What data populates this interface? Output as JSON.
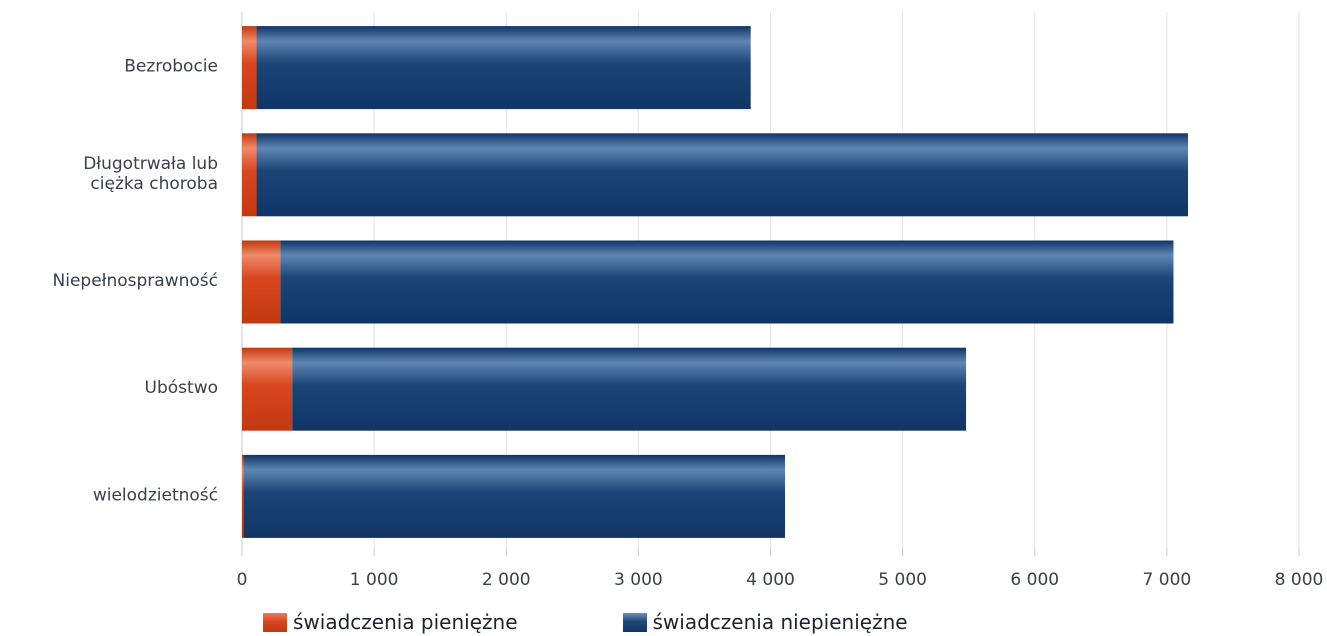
{
  "chart_data": {
    "type": "bar",
    "orientation": "horizontal",
    "stacked": true,
    "categories": [
      "Bezrobocie",
      "Długotrwała lub\nciężka choroba",
      "Niepełnosprawność",
      "Ubóstwo",
      "wielodzietność"
    ],
    "series": [
      {
        "name": "świadczenia pieniężne",
        "color": "#d7461f",
        "values": [
          110,
          110,
          290,
          380,
          10
        ]
      },
      {
        "name": "świadczenia niepieniężne",
        "color": "#143e70",
        "values": [
          3740,
          7050,
          6760,
          5100,
          4100
        ]
      }
    ],
    "xlim": [
      0,
      8000
    ],
    "xticks": [
      0,
      1000,
      2000,
      3000,
      4000,
      5000,
      6000,
      7000,
      8000
    ],
    "xtick_labels": [
      "0",
      "1 000",
      "2 000",
      "3 000",
      "4 000",
      "5 000",
      "6 000",
      "7 000",
      "8 000"
    ],
    "grid": "vertical",
    "legend_position": "bottom"
  }
}
